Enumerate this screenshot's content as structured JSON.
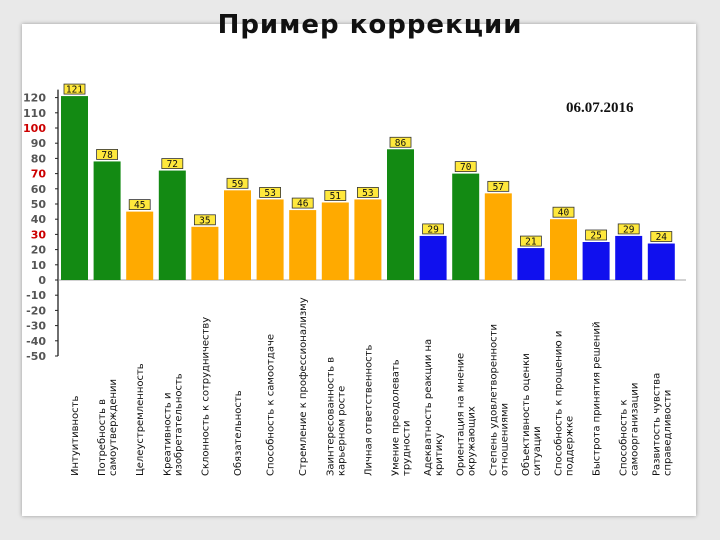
{
  "slide": {
    "title": "Пример коррекции",
    "date": "06.07.2016"
  },
  "chart_data": {
    "type": "bar",
    "ylim": [
      -50,
      120
    ],
    "yticks": [
      120,
      110,
      100,
      90,
      80,
      70,
      60,
      50,
      40,
      30,
      20,
      10,
      0,
      -10,
      -20,
      -30,
      -40,
      -50
    ],
    "highlighted_ticks": [
      100,
      70,
      30
    ],
    "highlight_color": "#cc0000",
    "categories": [
      [
        "Интуитивность"
      ],
      [
        "Потребность в",
        "самоутверждении"
      ],
      [
        "Целеустремленность"
      ],
      [
        "Креативность и",
        "изобретательность"
      ],
      [
        "Склонность к сотрудничеству"
      ],
      [
        "Обязательность"
      ],
      [
        "Способность к самоотдаче"
      ],
      [
        "Стремление к профессионализму"
      ],
      [
        "Заинтересованность в",
        "карьерном росте"
      ],
      [
        "Личная ответственность"
      ],
      [
        "Умение преодолевать",
        "трудности"
      ],
      [
        "Адекватность реакции на",
        "критику"
      ],
      [
        "Ориентация на мнение",
        "окружающих"
      ],
      [
        "Степень удовлетворенности",
        "отношениями"
      ],
      [
        "Объективность оценки",
        "ситуации"
      ],
      [
        "Способность к прощению и",
        "поддержке"
      ],
      [
        "Быстрота принятия решений"
      ],
      [
        "Способность к",
        "самоорганизации"
      ],
      [
        "Развитость чувства",
        "справедливости"
      ]
    ],
    "values": [
      121,
      78,
      45,
      72,
      35,
      59,
      53,
      46,
      51,
      53,
      86,
      29,
      70,
      57,
      21,
      40,
      25,
      29,
      24
    ],
    "value_labels": [
      "121",
      "78",
      "45",
      "72",
      "35",
      "59",
      "53",
      "46",
      "51",
      "53",
      "86",
      "29",
      "70",
      "57",
      "21",
      "40",
      "25",
      "29",
      "24"
    ],
    "bar_groups": [
      "high",
      "high",
      "mid",
      "high",
      "mid",
      "mid",
      "mid",
      "mid",
      "mid",
      "mid",
      "high",
      "low",
      "high",
      "mid",
      "low",
      "mid",
      "low",
      "low",
      "low"
    ],
    "colors": {
      "high": "#138a13",
      "mid": "#ffaa00",
      "low": "#1010ee",
      "label_bg": "#ffe83c",
      "axis": "#222222",
      "tick_text": "#555555"
    },
    "grid": false,
    "legend": "none"
  }
}
